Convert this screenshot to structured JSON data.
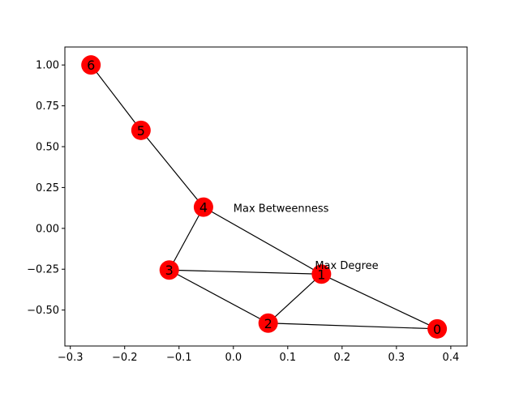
{
  "chart_data": {
    "type": "network",
    "xlim": [
      -0.31,
      0.43
    ],
    "ylim": [
      -0.72,
      1.11
    ],
    "x_ticks": [
      -0.3,
      -0.2,
      -0.1,
      0.0,
      0.1,
      0.2,
      0.3,
      0.4
    ],
    "x_tick_labels": [
      "−0.3",
      "−0.2",
      "−0.1",
      "0.0",
      "0.1",
      "0.2",
      "0.3",
      "0.4"
    ],
    "y_ticks": [
      -0.5,
      -0.25,
      0.0,
      0.25,
      0.5,
      0.75,
      1.0
    ],
    "y_tick_labels": [
      "−0.50",
      "−0.25",
      "0.00",
      "0.25",
      "0.50",
      "0.75",
      "1.00"
    ],
    "node_color": "#ff0000",
    "edge_color": "#000000",
    "nodes": [
      {
        "id": "0",
        "x": 0.375,
        "y": -0.615
      },
      {
        "id": "1",
        "x": 0.162,
        "y": -0.28
      },
      {
        "id": "2",
        "x": 0.064,
        "y": -0.58
      },
      {
        "id": "3",
        "x": -0.118,
        "y": -0.255
      },
      {
        "id": "4",
        "x": -0.055,
        "y": 0.13
      },
      {
        "id": "5",
        "x": -0.17,
        "y": 0.6
      },
      {
        "id": "6",
        "x": -0.262,
        "y": 1.0
      }
    ],
    "edges": [
      [
        "0",
        "1"
      ],
      [
        "0",
        "2"
      ],
      [
        "1",
        "2"
      ],
      [
        "1",
        "3"
      ],
      [
        "1",
        "4"
      ],
      [
        "2",
        "3"
      ],
      [
        "3",
        "4"
      ],
      [
        "4",
        "5"
      ],
      [
        "5",
        "6"
      ]
    ],
    "annotations": [
      {
        "text": "Max Betweenness",
        "x": 0.0,
        "y": 0.1
      },
      {
        "text": "Max Degree",
        "x": 0.15,
        "y": -0.25
      }
    ]
  }
}
